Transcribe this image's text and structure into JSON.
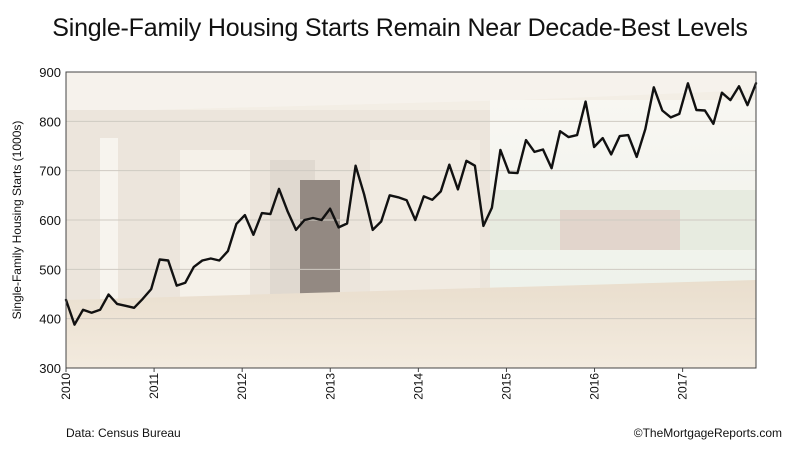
{
  "chart_data": {
    "type": "line",
    "title": "Single-Family Housing Starts Remain Near Decade-Best Levels",
    "ylabel": "Single-Family Housing Starts (1000s)",
    "xlabel": "",
    "ylim": [
      300,
      900
    ],
    "y_ticks": [
      "300",
      "400",
      "500",
      "600",
      "700",
      "800",
      "900"
    ],
    "x_ticks": [
      "2010",
      "2011",
      "2012",
      "2013",
      "2014",
      "2015",
      "2016",
      "2017"
    ],
    "x_range_years": [
      2010,
      2017.833
    ],
    "grid": "horizontal",
    "background": "photo of an empty room with windows (faded)",
    "series": [
      {
        "values": [
          438,
          388,
          418,
          412,
          418,
          449,
          430,
          426,
          422,
          440,
          460,
          520,
          518,
          467,
          473,
          505,
          518,
          522,
          518,
          537,
          592,
          610,
          570,
          614,
          612,
          663,
          618,
          580,
          600,
          604,
          600,
          623,
          585,
          593,
          710,
          652,
          580,
          597,
          650,
          646,
          640,
          600,
          648,
          641,
          658,
          712,
          662,
          720,
          710,
          588,
          625,
          742,
          696,
          695,
          762,
          738,
          743,
          705,
          780,
          768,
          772,
          840,
          748,
          766,
          733,
          770,
          772,
          728,
          784,
          869,
          822,
          808,
          815,
          877,
          823,
          822,
          795,
          858,
          843,
          871,
          833,
          877
        ]
      }
    ],
    "line_color": "#111111"
  },
  "footer": {
    "source": "Data: Census Bureau",
    "credit": "©TheMortgageReports.com"
  }
}
